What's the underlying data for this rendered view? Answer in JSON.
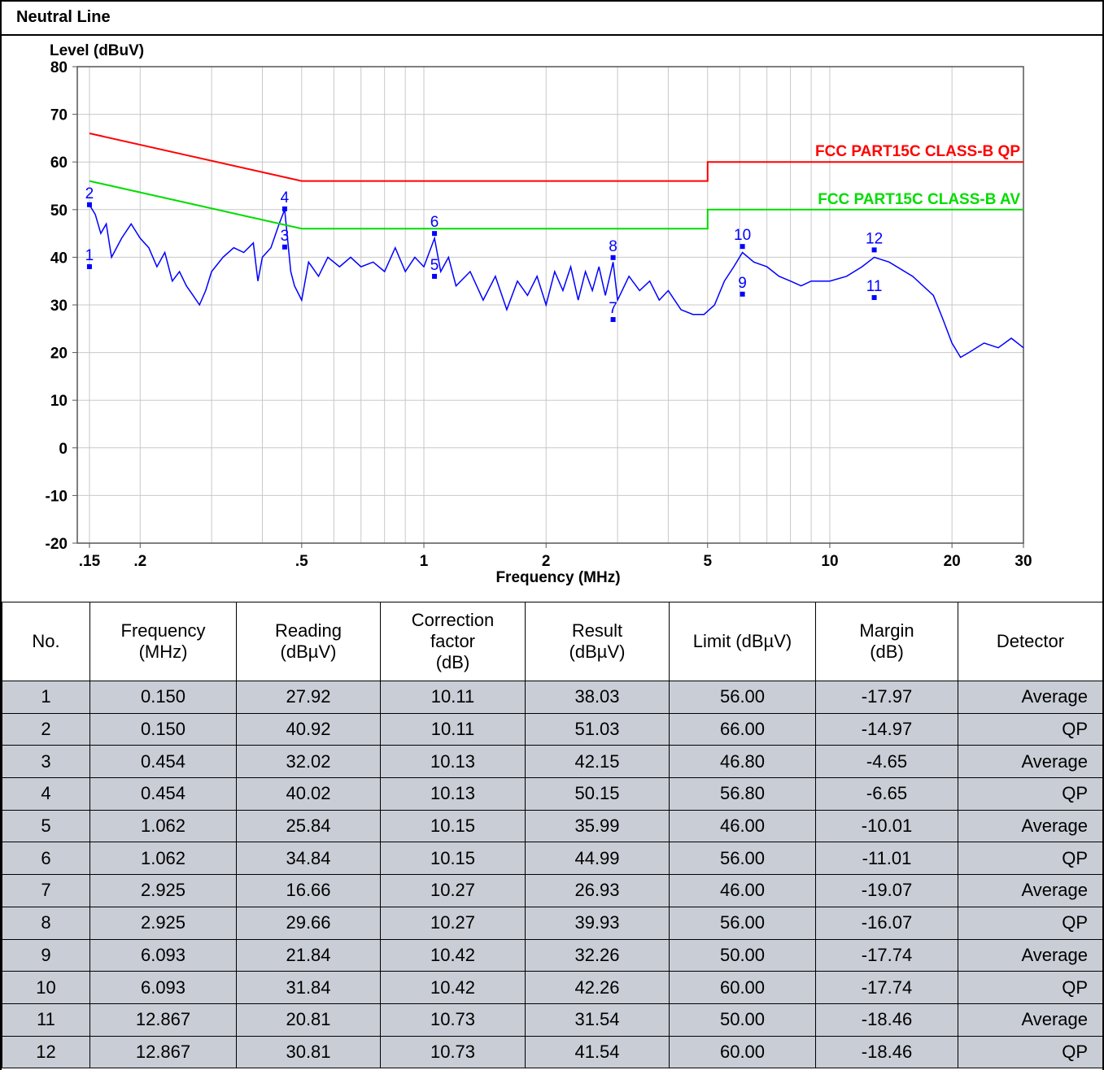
{
  "header": {
    "title": "Neutral Line"
  },
  "chart_data": {
    "type": "line",
    "ylabel": "Level (dBuV)",
    "xlabel": "Frequency (MHz)",
    "xlog": true,
    "grid": true,
    "xlim": [
      0.14,
      30
    ],
    "ylim": [
      -20,
      80
    ],
    "xticks": [
      {
        "value": 0.15,
        "label": ".15"
      },
      {
        "value": 0.2,
        "label": ".2"
      },
      {
        "value": 0.5,
        "label": ".5"
      },
      1,
      2,
      5,
      10,
      20,
      30
    ],
    "xminor": [
      0.3,
      0.4,
      0.6,
      0.7,
      0.8,
      0.9,
      3,
      4,
      6,
      7,
      8,
      9
    ],
    "yticks": [
      -20,
      -10,
      0,
      10,
      20,
      30,
      40,
      50,
      60,
      70,
      80
    ],
    "series": [
      {
        "color": "#0000ff",
        "x": [
          0.15,
          0.155,
          0.16,
          0.165,
          0.17,
          0.18,
          0.19,
          0.2,
          0.21,
          0.22,
          0.23,
          0.24,
          0.25,
          0.26,
          0.27,
          0.28,
          0.29,
          0.3,
          0.32,
          0.34,
          0.36,
          0.38,
          0.39,
          0.4,
          0.42,
          0.44,
          0.454,
          0.46,
          0.47,
          0.48,
          0.5,
          0.52,
          0.55,
          0.58,
          0.62,
          0.66,
          0.7,
          0.75,
          0.8,
          0.85,
          0.9,
          0.95,
          1.0,
          1.062,
          1.1,
          1.15,
          1.2,
          1.3,
          1.4,
          1.5,
          1.6,
          1.7,
          1.8,
          1.9,
          2.0,
          2.1,
          2.2,
          2.3,
          2.4,
          2.5,
          2.6,
          2.7,
          2.8,
          2.925,
          3.0,
          3.2,
          3.4,
          3.6,
          3.8,
          4.0,
          4.3,
          4.6,
          4.9,
          5.2,
          5.5,
          5.8,
          6.093,
          6.5,
          7,
          7.5,
          8,
          8.5,
          9,
          10,
          11,
          12,
          12.867,
          14,
          16,
          18,
          19,
          20,
          21,
          22,
          24,
          26,
          28,
          30
        ],
        "values": [
          51,
          49,
          45,
          47,
          40,
          44,
          47,
          44,
          42,
          38,
          41,
          35,
          37,
          34,
          32,
          30,
          33,
          37,
          40,
          42,
          41,
          43,
          35,
          40,
          42,
          47,
          50,
          45,
          37,
          34,
          31,
          39,
          36,
          40,
          38,
          40,
          38,
          39,
          37,
          42,
          37,
          40,
          38,
          44,
          37,
          40,
          34,
          37,
          31,
          36,
          29,
          35,
          32,
          36,
          30,
          37,
          33,
          38,
          31,
          37,
          33,
          38,
          32,
          39,
          31,
          36,
          33,
          35,
          31,
          33,
          29,
          28,
          28,
          30,
          35,
          38,
          41,
          39,
          38,
          36,
          35,
          34,
          35,
          35,
          36,
          38,
          40,
          39,
          36,
          32,
          27,
          22,
          19,
          20,
          22,
          21,
          23,
          21
        ]
      },
      {
        "name": "FCC PART15C CLASS-B QP",
        "color": "#ff0000",
        "x": [
          0.15,
          0.5,
          5,
          5,
          30
        ],
        "values": [
          66,
          56,
          56,
          60,
          60
        ]
      },
      {
        "name": "FCC PART15C CLASS-B AV",
        "color": "#00dd00",
        "x": [
          0.15,
          0.5,
          5,
          5,
          30
        ],
        "values": [
          56,
          46,
          46,
          50,
          50
        ]
      }
    ],
    "markers": {
      "color": "#0000ff",
      "x": [
        0.15,
        0.15,
        0.454,
        0.454,
        1.062,
        1.062,
        2.925,
        2.925,
        6.093,
        6.093,
        12.867,
        12.867
      ],
      "values": [
        38.03,
        51.03,
        42.15,
        50.15,
        35.99,
        44.99,
        26.93,
        39.93,
        32.26,
        42.26,
        31.54,
        41.54
      ],
      "labels": [
        "1",
        "2",
        "3",
        "4",
        "5",
        "6",
        "7",
        "8",
        "9",
        "10",
        "11",
        "12"
      ]
    }
  },
  "table": {
    "header": [
      [
        "No."
      ],
      [
        "Frequency",
        "(MHz)"
      ],
      [
        "Reading",
        "(dBµV)"
      ],
      [
        "Correction",
        "factor",
        "(dB)"
      ],
      [
        "Result",
        "(dBµV)"
      ],
      [
        "Limit (dBµV)"
      ],
      [
        "Margin",
        "(dB)"
      ],
      [
        "Detector"
      ]
    ],
    "rows": [
      [
        "1",
        "0.150",
        "27.92",
        "10.11",
        "38.03",
        "56.00",
        "-17.97",
        "Average"
      ],
      [
        "2",
        "0.150",
        "40.92",
        "10.11",
        "51.03",
        "66.00",
        "-14.97",
        "QP"
      ],
      [
        "3",
        "0.454",
        "32.02",
        "10.13",
        "42.15",
        "46.80",
        "-4.65",
        "Average"
      ],
      [
        "4",
        "0.454",
        "40.02",
        "10.13",
        "50.15",
        "56.80",
        "-6.65",
        "QP"
      ],
      [
        "5",
        "1.062",
        "25.84",
        "10.15",
        "35.99",
        "46.00",
        "-10.01",
        "Average"
      ],
      [
        "6",
        "1.062",
        "34.84",
        "10.15",
        "44.99",
        "56.00",
        "-11.01",
        "QP"
      ],
      [
        "7",
        "2.925",
        "16.66",
        "10.27",
        "26.93",
        "46.00",
        "-19.07",
        "Average"
      ],
      [
        "8",
        "2.925",
        "29.66",
        "10.27",
        "39.93",
        "56.00",
        "-16.07",
        "QP"
      ],
      [
        "9",
        "6.093",
        "21.84",
        "10.42",
        "32.26",
        "50.00",
        "-17.74",
        "Average"
      ],
      [
        "10",
        "6.093",
        "31.84",
        "10.42",
        "42.26",
        "60.00",
        "-17.74",
        "QP"
      ],
      [
        "11",
        "12.867",
        "20.81",
        "10.73",
        "31.54",
        "50.00",
        "-18.46",
        "Average"
      ],
      [
        "12",
        "12.867",
        "30.81",
        "10.73",
        "41.54",
        "60.00",
        "-18.46",
        "QP"
      ]
    ]
  }
}
